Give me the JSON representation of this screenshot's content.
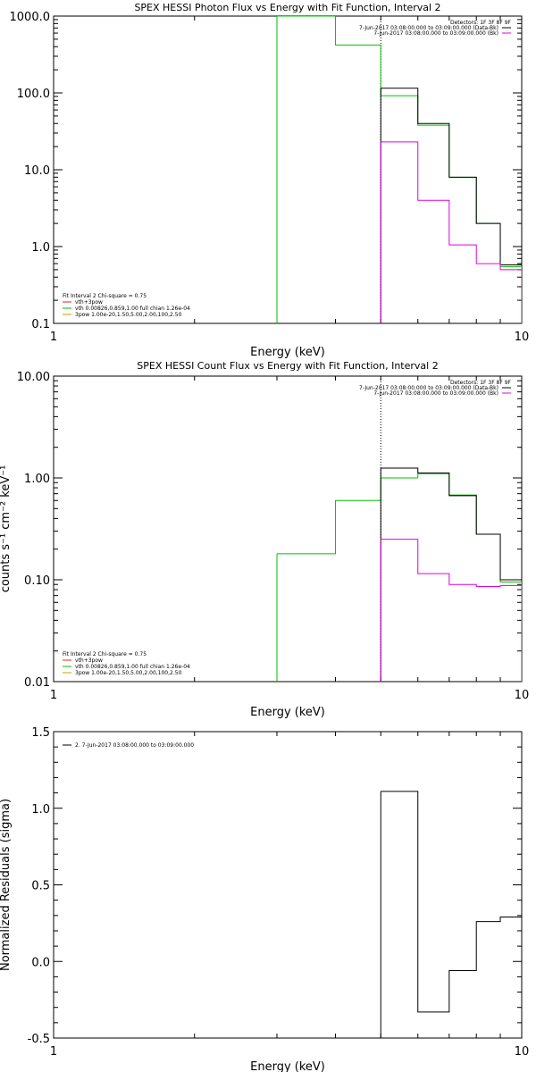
{
  "chart_data": [
    {
      "type": "line",
      "title": "SPEX HESSI Photon Flux vs Energy with Fit Function, Interval 2",
      "xlabel": "Energy (keV)",
      "ylabel": "",
      "xscale": "log",
      "yscale": "log",
      "xlim": [
        1,
        10
      ],
      "ylim": [
        0.1,
        1000
      ],
      "xticklabels": [
        {
          "v": 1,
          "t": "1"
        },
        {
          "v": 10,
          "t": "10"
        }
      ],
      "yticklabels": [
        {
          "v": 0.1,
          "t": "0.1"
        },
        {
          "v": 1,
          "t": "1.0"
        },
        {
          "v": 10,
          "t": "10.0"
        },
        {
          "v": 100,
          "t": "100.0"
        },
        {
          "v": 1000,
          "t": "1000.0"
        }
      ],
      "vline": 5.0,
      "legend_top": {
        "placement": "top-right",
        "lines": [
          {
            "text": "Detectors: 1F 3F 8F 9F",
            "color": ""
          },
          {
            "text": "7-Jun-2017 03:08:00.000 to 03:09:00.000 (Data-Bk)",
            "color": "#000000"
          },
          {
            "text": "7-Jun-2017 03:08:00.000 to 03:09:00.000 (Bk)",
            "color": "#e000e0"
          }
        ]
      },
      "legend_bottom": {
        "placement": "bottom-left",
        "lines": [
          {
            "text": "Fit Interval 2   Chi-square = 0.75",
            "color": ""
          },
          {
            "text": "vth+3pow",
            "color": "#e02020"
          },
          {
            "text": "vth 0.00826,0.859,1.00  full chian 1.26e-04",
            "color": "#00c000"
          },
          {
            "text": "3pow 1.00e-20,1.50,5.00,2.00,100,2.50",
            "color": "#c8a000"
          }
        ]
      },
      "series": [
        {
          "name": "vth 0.00826,0.859,1.00  full chian 1.26e-04",
          "color": "#00c000",
          "steps": [
            {
              "x0": 3.0,
              "x1": 4.0,
              "y": 1000
            },
            {
              "x0": 4.0,
              "x1": 5.0,
              "y": 420
            },
            {
              "x0": 5.0,
              "x1": 6.0,
              "y": 92
            },
            {
              "x0": 6.0,
              "x1": 7.0,
              "y": 38
            },
            {
              "x0": 7.0,
              "x1": 8.0,
              "y": 8
            },
            {
              "x0": 8.0,
              "x1": 9.0,
              "y": 2
            },
            {
              "x0": 9.0,
              "x1": 10.0,
              "y": 0.55
            }
          ],
          "drop_to_bottom": [
            3.0,
            10.0
          ]
        },
        {
          "name": "7-Jun-2017 03:08:00.000 to 03:09:00.000 (Data-Bk)",
          "color": "#000000",
          "steps": [
            {
              "x0": 5.0,
              "x1": 6.0,
              "y": 115
            },
            {
              "x0": 6.0,
              "x1": 7.0,
              "y": 40
            },
            {
              "x0": 7.0,
              "x1": 8.0,
              "y": 8
            },
            {
              "x0": 8.0,
              "x1": 9.0,
              "y": 2
            },
            {
              "x0": 9.0,
              "x1": 10.0,
              "y": 0.58
            }
          ],
          "drop_to_bottom": [
            5.0
          ]
        },
        {
          "name": "7-Jun-2017 03:08:00.000 to 03:09:00.000 (Bk)",
          "color": "#e000e0",
          "steps": [
            {
              "x0": 5.0,
              "x1": 6.0,
              "y": 23
            },
            {
              "x0": 6.0,
              "x1": 7.0,
              "y": 4
            },
            {
              "x0": 7.0,
              "x1": 8.0,
              "y": 1.05
            },
            {
              "x0": 8.0,
              "x1": 9.0,
              "y": 0.6
            },
            {
              "x0": 9.0,
              "x1": 10.0,
              "y": 0.5
            }
          ],
          "drop_to_bottom": [
            5.0,
            10.0
          ]
        }
      ]
    },
    {
      "type": "line",
      "title": "SPEX HESSI Count Flux vs Energy with Fit Function, Interval 2",
      "xlabel": "Energy (keV)",
      "ylabel": "counts s⁻¹ cm⁻² keV⁻¹",
      "xscale": "log",
      "yscale": "log",
      "xlim": [
        1,
        10
      ],
      "ylim": [
        0.01,
        10
      ],
      "xticklabels": [
        {
          "v": 1,
          "t": "1"
        },
        {
          "v": 10,
          "t": "10"
        }
      ],
      "yticklabels": [
        {
          "v": 0.01,
          "t": "0.01"
        },
        {
          "v": 0.1,
          "t": "0.10"
        },
        {
          "v": 1,
          "t": "1.00"
        },
        {
          "v": 10,
          "t": "10.00"
        }
      ],
      "vline": 5.0,
      "legend_top": {
        "placement": "top-right",
        "lines": [
          {
            "text": "Detectors: 1F 3F 8F 9F",
            "color": ""
          },
          {
            "text": "7-Jun-2017 03:08:00.000 to 03:09:00.000 (Data-Bk)",
            "color": "#000000"
          },
          {
            "text": "7-Jun-2017 03:08:00.000 to 03:09:00.000 (Bk)",
            "color": "#e000e0"
          }
        ]
      },
      "legend_bottom": {
        "placement": "bottom-left",
        "lines": [
          {
            "text": "Fit Interval 2   Chi-square = 0.75",
            "color": ""
          },
          {
            "text": "vth+3pow",
            "color": "#e02020"
          },
          {
            "text": "vth 0.00826,0.859,1.00  full chian 1.26e-04",
            "color": "#00c000"
          },
          {
            "text": "3pow 1.00e-20,1.50,5.00,2.00,100,2.50",
            "color": "#c8a000"
          }
        ]
      },
      "series": [
        {
          "name": "vth 0.00826,0.859,1.00  full chian 1.26e-04",
          "color": "#00c000",
          "steps": [
            {
              "x0": 3.0,
              "x1": 4.0,
              "y": 0.18
            },
            {
              "x0": 4.0,
              "x1": 5.0,
              "y": 0.6
            },
            {
              "x0": 5.0,
              "x1": 6.0,
              "y": 1.0
            },
            {
              "x0": 6.0,
              "x1": 7.0,
              "y": 1.1
            },
            {
              "x0": 7.0,
              "x1": 8.0,
              "y": 0.68
            },
            {
              "x0": 8.0,
              "x1": 9.0,
              "y": 0.28
            },
            {
              "x0": 9.0,
              "x1": 10.0,
              "y": 0.095
            }
          ],
          "drop_to_bottom": [
            3.0,
            10.0
          ]
        },
        {
          "name": "7-Jun-2017 03:08:00.000 to 03:09:00.000 (Data-Bk)",
          "color": "#000000",
          "steps": [
            {
              "x0": 5.0,
              "x1": 6.0,
              "y": 1.25
            },
            {
              "x0": 6.0,
              "x1": 7.0,
              "y": 1.12
            },
            {
              "x0": 7.0,
              "x1": 8.0,
              "y": 0.67
            },
            {
              "x0": 8.0,
              "x1": 9.0,
              "y": 0.28
            },
            {
              "x0": 9.0,
              "x1": 10.0,
              "y": 0.1
            }
          ],
          "drop_to_bottom": [
            5.0
          ]
        },
        {
          "name": "7-Jun-2017 03:08:00.000 to 03:09:00.000 (Bk)",
          "color": "#e000e0",
          "steps": [
            {
              "x0": 5.0,
              "x1": 6.0,
              "y": 0.25
            },
            {
              "x0": 6.0,
              "x1": 7.0,
              "y": 0.115
            },
            {
              "x0": 7.0,
              "x1": 8.0,
              "y": 0.09
            },
            {
              "x0": 8.0,
              "x1": 9.0,
              "y": 0.086
            },
            {
              "x0": 9.0,
              "x1": 10.0,
              "y": 0.088
            }
          ],
          "drop_to_bottom": [
            5.0,
            10.0
          ]
        }
      ]
    },
    {
      "type": "line",
      "title": "",
      "xlabel": "Energy (keV)",
      "ylabel": "Normalized Residuals (sigma)",
      "xscale": "log",
      "yscale": "linear",
      "xlim": [
        1,
        10
      ],
      "ylim": [
        -0.5,
        1.5
      ],
      "xticklabels": [
        {
          "v": 1,
          "t": "1"
        },
        {
          "v": 10,
          "t": "10"
        }
      ],
      "yticklabels": [
        {
          "v": -0.5,
          "t": "-0.5"
        },
        {
          "v": 0,
          "t": "0.0"
        },
        {
          "v": 0.5,
          "t": "0.5"
        },
        {
          "v": 1.0,
          "t": "1.0"
        },
        {
          "v": 1.5,
          "t": "1.5"
        }
      ],
      "legend_top": {
        "placement": "top-left",
        "lines": [
          {
            "text": "2.  7-Jun-2017 03:08:00.000 to 03:09:00.000",
            "color": "#000000"
          }
        ]
      },
      "series": [
        {
          "name": "2.  7-Jun-2017 03:08:00.000 to 03:09:00.000",
          "color": "#000000",
          "steps": [
            {
              "x0": 5.0,
              "x1": 6.0,
              "y": 1.11
            },
            {
              "x0": 6.0,
              "x1": 7.0,
              "y": -0.33
            },
            {
              "x0": 7.0,
              "x1": 8.0,
              "y": -0.06
            },
            {
              "x0": 8.0,
              "x1": 9.0,
              "y": 0.26
            },
            {
              "x0": 9.0,
              "x1": 10.0,
              "y": 0.29
            }
          ],
          "drop_to_bottom": [
            5.0
          ]
        }
      ]
    }
  ]
}
